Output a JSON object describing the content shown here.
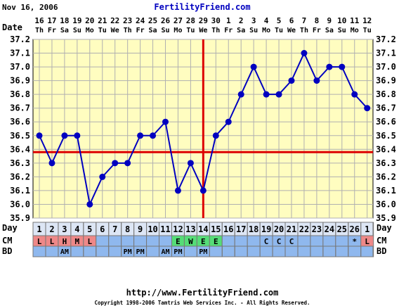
{
  "header": {
    "date_stamp": "Nov 16, 2006",
    "site_title": "FertilityFriend.com"
  },
  "footer": {
    "url": "http://www.FertilityFriend.com",
    "copyright": "Copyright 1998-2006 Tamtris Web Services Inc. - All Rights Reserved."
  },
  "labels": {
    "date_row": "Date",
    "day_row": "Day",
    "cm_row": "CM",
    "bd_row": "BD"
  },
  "colors": {
    "background": "#fffdc0",
    "line": "#0000c0",
    "coverline": "#dd0000",
    "row_blue": "#8fb8ee",
    "cm_red": "#ee8888",
    "cm_green": "#55dd77"
  },
  "chart_data": {
    "type": "line",
    "ylim": [
      35.9,
      37.2
    ],
    "yticks": [
      "37.2",
      "37.1",
      "37.0",
      "36.9",
      "36.8",
      "36.7",
      "36.6",
      "36.5",
      "36.4",
      "36.3",
      "36.2",
      "36.1",
      "36.0",
      "35.9"
    ],
    "dates": [
      "16",
      "17",
      "18",
      "19",
      "20",
      "21",
      "22",
      "23",
      "24",
      "25",
      "26",
      "27",
      "28",
      "29",
      "30",
      "1",
      "2",
      "3",
      "4",
      "5",
      "6",
      "7",
      "8",
      "9",
      "10",
      "11",
      "12"
    ],
    "weekdays": [
      "Th",
      "Fr",
      "Sa",
      "Su",
      "Mo",
      "Tu",
      "We",
      "Th",
      "Fr",
      "Sa",
      "Su",
      "Mo",
      "Tu",
      "We",
      "Th",
      "Fr",
      "Sa",
      "Su",
      "Mo",
      "Tu",
      "We",
      "Th",
      "Fr",
      "Sa",
      "Su",
      "Mo",
      "Tu"
    ],
    "days": [
      "1",
      "2",
      "3",
      "4",
      "5",
      "6",
      "7",
      "8",
      "9",
      "10",
      "11",
      "12",
      "13",
      "14",
      "15",
      "16",
      "17",
      "18",
      "19",
      "20",
      "21",
      "22",
      "23",
      "24",
      "25",
      "26",
      "1"
    ],
    "temperatures": [
      36.5,
      36.3,
      36.5,
      36.5,
      36.0,
      36.2,
      36.3,
      36.3,
      36.5,
      36.5,
      36.6,
      36.1,
      36.3,
      36.1,
      36.5,
      36.6,
      36.8,
      37.0,
      36.8,
      36.8,
      36.9,
      37.1,
      36.9,
      37.0,
      37.0,
      36.8,
      36.7
    ],
    "coverline": 36.38,
    "ovulation_day_index": 13,
    "cm": [
      "L",
      "L",
      "H",
      "M",
      "L",
      "",
      "",
      "",
      "",
      "",
      "",
      "E",
      "W",
      "E",
      "E",
      "",
      "",
      "",
      "C",
      "C",
      "C",
      "",
      "",
      "",
      "",
      "*",
      "L"
    ],
    "cm_types": [
      "red",
      "red",
      "red",
      "red",
      "red",
      "blue",
      "blue",
      "blue",
      "blue",
      "blue",
      "blue",
      "green",
      "green",
      "green",
      "green",
      "blue",
      "blue",
      "blue",
      "blue",
      "blue",
      "blue",
      "blue",
      "blue",
      "blue",
      "blue",
      "blue",
      "red"
    ],
    "bd": [
      "",
      "",
      "AM",
      "",
      "",
      "",
      "",
      "PM",
      "PM",
      "",
      "AM",
      "PM",
      "",
      "PM",
      "",
      "",
      "",
      "",
      "",
      "",
      "",
      "",
      "",
      "",
      "",
      "",
      ""
    ]
  }
}
